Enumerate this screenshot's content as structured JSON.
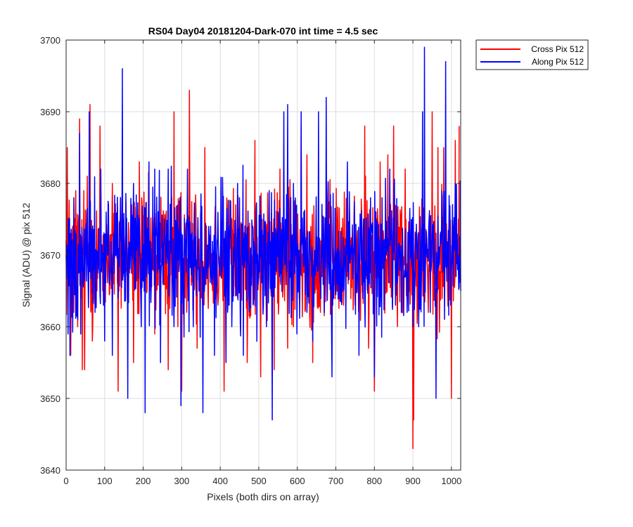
{
  "chart_data": {
    "type": "line",
    "title": "RS04 Day04 20181204-Dark-070 int time = 4.5 sec",
    "xlabel": "Pixels (both dirs on array)",
    "ylabel": "Signal (ADU) @ pix 512",
    "xlim": [
      0,
      1024
    ],
    "ylim": [
      3640,
      3700
    ],
    "xticks": [
      0,
      100,
      200,
      300,
      400,
      500,
      600,
      700,
      800,
      900,
      1000
    ],
    "yticks": [
      3640,
      3650,
      3660,
      3670,
      3680,
      3690,
      3700
    ],
    "xtick_labels": [
      "0",
      "100",
      "200",
      "300",
      "400",
      "500",
      "600",
      "700",
      "800",
      "900",
      "1000"
    ],
    "ytick_labels": [
      "3640",
      "3650",
      "3660",
      "3670",
      "3680",
      "3690",
      "3700"
    ],
    "grid": true,
    "legend_position": "outside-top-right",
    "series": [
      {
        "name": "Cross Pix 512",
        "color": "#ff0000",
        "description": "noisy dark-signal trace across 1024 pixels, mean about 3670 ADU",
        "points": [
          [
            0,
            3672
          ],
          [
            3,
            3685
          ],
          [
            12,
            3656
          ],
          [
            20,
            3662
          ],
          [
            25,
            3679
          ],
          [
            30,
            3660
          ],
          [
            35,
            3689
          ],
          [
            42,
            3654
          ],
          [
            48,
            3654
          ],
          [
            55,
            3681
          ],
          [
            62,
            3691
          ],
          [
            68,
            3658
          ],
          [
            80,
            3665
          ],
          [
            88,
            3688
          ],
          [
            95,
            3665
          ],
          [
            110,
            3670
          ],
          [
            120,
            3680
          ],
          [
            135,
            3651
          ],
          [
            145,
            3678
          ],
          [
            160,
            3665
          ],
          [
            175,
            3655
          ],
          [
            190,
            3683
          ],
          [
            210,
            3665
          ],
          [
            230,
            3659
          ],
          [
            250,
            3675
          ],
          [
            265,
            3654
          ],
          [
            280,
            3690
          ],
          [
            290,
            3660
          ],
          [
            300,
            3651
          ],
          [
            320,
            3693
          ],
          [
            340,
            3657
          ],
          [
            360,
            3685
          ],
          [
            380,
            3665
          ],
          [
            400,
            3667
          ],
          [
            410,
            3651
          ],
          [
            430,
            3675
          ],
          [
            450,
            3673
          ],
          [
            470,
            3655
          ],
          [
            490,
            3686
          ],
          [
            505,
            3653
          ],
          [
            520,
            3670
          ],
          [
            540,
            3654
          ],
          [
            555,
            3682
          ],
          [
            575,
            3657
          ],
          [
            590,
            3660
          ],
          [
            610,
            3688
          ],
          [
            625,
            3684
          ],
          [
            640,
            3655
          ],
          [
            660,
            3662
          ],
          [
            680,
            3680
          ],
          [
            700,
            3665
          ],
          [
            720,
            3663
          ],
          [
            735,
            3677
          ],
          [
            750,
            3663
          ],
          [
            765,
            3668
          ],
          [
            775,
            3688
          ],
          [
            785,
            3657
          ],
          [
            800,
            3651
          ],
          [
            815,
            3683
          ],
          [
            835,
            3684
          ],
          [
            850,
            3688
          ],
          [
            860,
            3660
          ],
          [
            880,
            3682
          ],
          [
            895,
            3672
          ],
          [
            900,
            3643
          ],
          [
            902,
            3647
          ],
          [
            910,
            3670
          ],
          [
            920,
            3667
          ],
          [
            940,
            3662
          ],
          [
            950,
            3690
          ],
          [
            965,
            3685
          ],
          [
            980,
            3685
          ],
          [
            1000,
            3650
          ],
          [
            1010,
            3686
          ],
          [
            1020,
            3688
          ]
        ]
      },
      {
        "name": "Along Pix 512",
        "color": "#0000ff",
        "description": "noisy dark-signal trace across 1024 pixels, mean about 3670 ADU",
        "points": [
          [
            0,
            3670
          ],
          [
            5,
            3659
          ],
          [
            10,
            3656
          ],
          [
            20,
            3678
          ],
          [
            30,
            3661
          ],
          [
            35,
            3687
          ],
          [
            45,
            3666
          ],
          [
            60,
            3690
          ],
          [
            75,
            3662
          ],
          [
            90,
            3682
          ],
          [
            100,
            3658
          ],
          [
            110,
            3677
          ],
          [
            120,
            3656
          ],
          [
            135,
            3664
          ],
          [
            146,
            3696
          ],
          [
            160,
            3650
          ],
          [
            175,
            3680
          ],
          [
            195,
            3660
          ],
          [
            205,
            3648
          ],
          [
            215,
            3683
          ],
          [
            230,
            3682
          ],
          [
            245,
            3655
          ],
          [
            255,
            3675
          ],
          [
            265,
            3682
          ],
          [
            280,
            3660
          ],
          [
            298,
            3649
          ],
          [
            315,
            3682
          ],
          [
            330,
            3660
          ],
          [
            345,
            3665
          ],
          [
            355,
            3648
          ],
          [
            370,
            3674
          ],
          [
            385,
            3656
          ],
          [
            400,
            3670
          ],
          [
            415,
            3655
          ],
          [
            430,
            3660
          ],
          [
            445,
            3680
          ],
          [
            460,
            3656
          ],
          [
            480,
            3670
          ],
          [
            500,
            3667
          ],
          [
            520,
            3660
          ],
          [
            535,
            3647
          ],
          [
            550,
            3676
          ],
          [
            565,
            3690
          ],
          [
            575,
            3691
          ],
          [
            590,
            3680
          ],
          [
            610,
            3690
          ],
          [
            625,
            3662
          ],
          [
            640,
            3658
          ],
          [
            655,
            3690
          ],
          [
            670,
            3662
          ],
          [
            675,
            3692
          ],
          [
            690,
            3653
          ],
          [
            710,
            3664
          ],
          [
            730,
            3683
          ],
          [
            745,
            3668
          ],
          [
            760,
            3656
          ],
          [
            775,
            3663
          ],
          [
            790,
            3678
          ],
          [
            800,
            3653
          ],
          [
            820,
            3678
          ],
          [
            840,
            3682
          ],
          [
            855,
            3663
          ],
          [
            870,
            3662
          ],
          [
            885,
            3662
          ],
          [
            900,
            3660
          ],
          [
            915,
            3660
          ],
          [
            925,
            3690
          ],
          [
            930,
            3699
          ],
          [
            945,
            3662
          ],
          [
            960,
            3650
          ],
          [
            975,
            3679
          ],
          [
            985,
            3697
          ],
          [
            998,
            3663
          ],
          [
            1010,
            3680
          ],
          [
            1024,
            3665
          ]
        ]
      }
    ]
  }
}
